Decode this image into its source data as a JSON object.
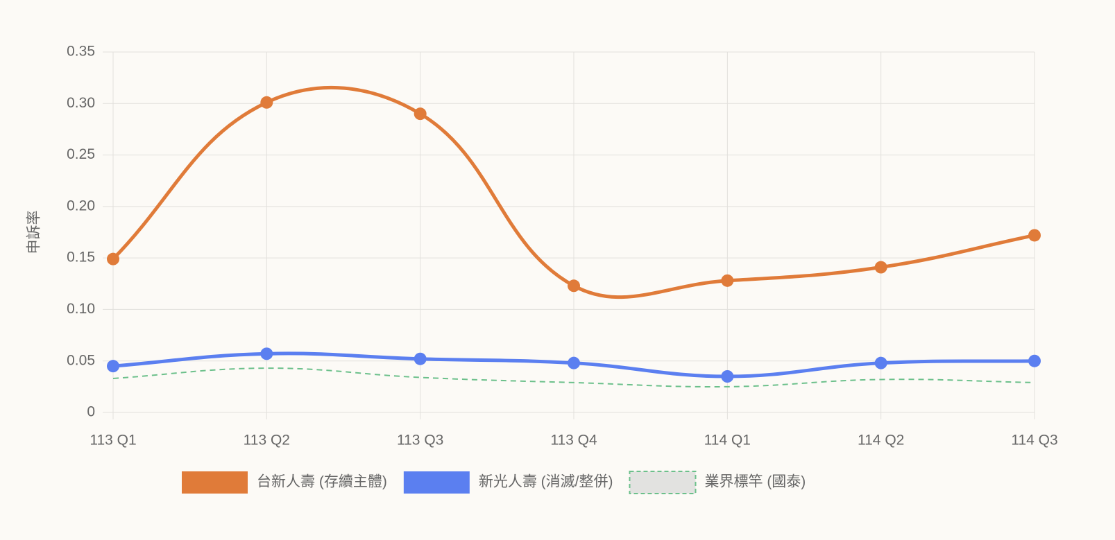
{
  "chart_data": {
    "type": "line",
    "y_label": "申訴率",
    "categories": [
      "113 Q1",
      "113 Q2",
      "113 Q3",
      "113 Q4",
      "114 Q1",
      "114 Q2",
      "114 Q3"
    ],
    "series": [
      {
        "name": "台新人壽 (存續主體)",
        "color": "#e07b39",
        "values": [
          0.149,
          0.301,
          0.29,
          0.123,
          0.128,
          0.141,
          0.172
        ],
        "dashed": false,
        "points": true
      },
      {
        "name": "新光人壽 (消滅/整併)",
        "color": "#5b7ff0",
        "values": [
          0.045,
          0.057,
          0.052,
          0.048,
          0.035,
          0.048,
          0.05
        ],
        "dashed": false,
        "points": true
      },
      {
        "name": "業界標竿 (國泰)",
        "color": "#6cc08b",
        "values": [
          0.033,
          0.043,
          0.034,
          0.029,
          0.025,
          0.032,
          0.029
        ],
        "dashed": true,
        "points": false
      }
    ],
    "ylim": [
      0,
      0.35
    ],
    "yticks": [
      0,
      0.05,
      {
        "value": 0.1,
        "label": "0.10"
      },
      0.15,
      {
        "value": 0.2,
        "label": "0.20"
      },
      0.25,
      {
        "value": 0.3,
        "label": "0.30"
      },
      0.35
    ],
    "grid": true,
    "legend": "bottom"
  }
}
